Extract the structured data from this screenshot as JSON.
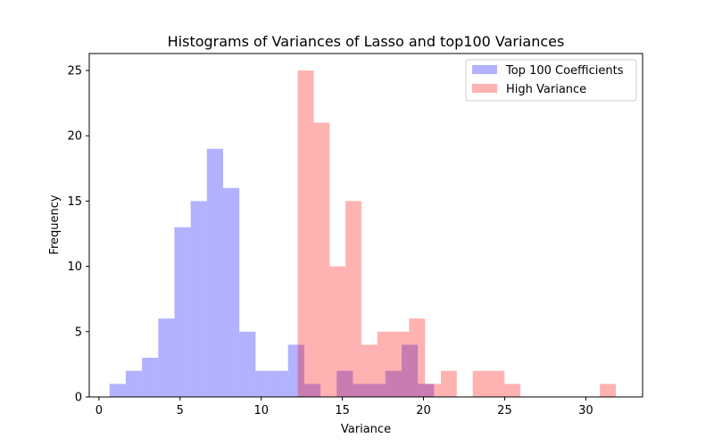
{
  "chart_data": {
    "type": "bar",
    "title": "Histograms of Variances of Lasso and top100 Variances",
    "xlabel": "Variance",
    "ylabel": "Frequency",
    "xlim": [
      -0.6,
      33.5
    ],
    "ylim": [
      0,
      26.3
    ],
    "xticks": [
      0,
      5,
      10,
      15,
      20,
      25,
      30
    ],
    "yticks": [
      0,
      5,
      10,
      15,
      20,
      25
    ],
    "grid": false,
    "legend_position": "top-right",
    "series": [
      {
        "name": "Top 100 Coefficients",
        "color": "#0000ff",
        "opacity": 0.3,
        "bins": [
          {
            "x0": 0.65,
            "x1": 1.65,
            "count": 1
          },
          {
            "x0": 1.65,
            "x1": 2.65,
            "count": 2
          },
          {
            "x0": 2.65,
            "x1": 3.65,
            "count": 3
          },
          {
            "x0": 3.65,
            "x1": 4.65,
            "count": 6
          },
          {
            "x0": 4.65,
            "x1": 5.65,
            "count": 13
          },
          {
            "x0": 5.65,
            "x1": 6.65,
            "count": 15
          },
          {
            "x0": 6.65,
            "x1": 7.65,
            "count": 19
          },
          {
            "x0": 7.65,
            "x1": 8.65,
            "count": 16
          },
          {
            "x0": 8.65,
            "x1": 9.65,
            "count": 5
          },
          {
            "x0": 9.65,
            "x1": 10.65,
            "count": 2
          },
          {
            "x0": 10.65,
            "x1": 11.65,
            "count": 2
          },
          {
            "x0": 11.65,
            "x1": 12.65,
            "count": 4
          },
          {
            "x0": 12.65,
            "x1": 13.65,
            "count": 1
          },
          {
            "x0": 13.65,
            "x1": 14.65,
            "count": 0
          },
          {
            "x0": 14.65,
            "x1": 15.65,
            "count": 2
          },
          {
            "x0": 15.65,
            "x1": 16.65,
            "count": 1
          },
          {
            "x0": 16.65,
            "x1": 17.65,
            "count": 1
          },
          {
            "x0": 17.65,
            "x1": 18.65,
            "count": 2
          },
          {
            "x0": 18.65,
            "x1": 19.65,
            "count": 4
          },
          {
            "x0": 19.65,
            "x1": 20.65,
            "count": 1
          }
        ]
      },
      {
        "name": "High Variance",
        "color": "#ff0000",
        "opacity": 0.3,
        "bins": [
          {
            "x0": 12.25,
            "x1": 13.23,
            "count": 25
          },
          {
            "x0": 13.23,
            "x1": 14.21,
            "count": 21
          },
          {
            "x0": 14.21,
            "x1": 15.19,
            "count": 10
          },
          {
            "x0": 15.19,
            "x1": 16.17,
            "count": 15
          },
          {
            "x0": 16.17,
            "x1": 17.15,
            "count": 4
          },
          {
            "x0": 17.15,
            "x1": 18.13,
            "count": 5
          },
          {
            "x0": 18.13,
            "x1": 19.11,
            "count": 5
          },
          {
            "x0": 19.11,
            "x1": 20.09,
            "count": 6
          },
          {
            "x0": 20.09,
            "x1": 21.07,
            "count": 1
          },
          {
            "x0": 21.07,
            "x1": 22.05,
            "count": 2
          },
          {
            "x0": 22.05,
            "x1": 23.03,
            "count": 0
          },
          {
            "x0": 23.03,
            "x1": 24.01,
            "count": 2
          },
          {
            "x0": 24.01,
            "x1": 24.99,
            "count": 2
          },
          {
            "x0": 24.99,
            "x1": 25.97,
            "count": 1
          },
          {
            "x0": 25.97,
            "x1": 26.95,
            "count": 0
          },
          {
            "x0": 26.95,
            "x1": 27.93,
            "count": 0
          },
          {
            "x0": 27.93,
            "x1": 28.91,
            "count": 0
          },
          {
            "x0": 28.91,
            "x1": 29.89,
            "count": 0
          },
          {
            "x0": 29.89,
            "x1": 30.87,
            "count": 0
          },
          {
            "x0": 30.87,
            "x1": 31.85,
            "count": 1
          }
        ]
      }
    ]
  }
}
